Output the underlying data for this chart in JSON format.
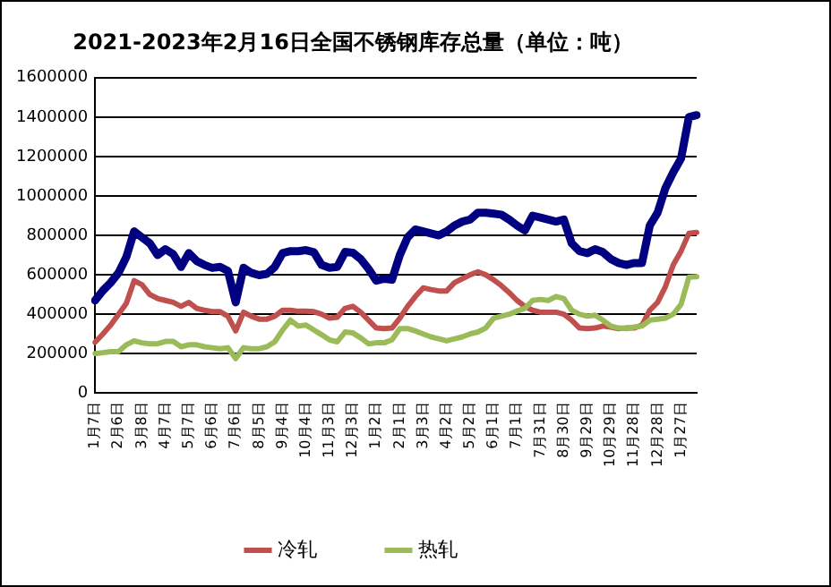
{
  "chart_data": {
    "type": "line",
    "title": "2021-2023年2月16日全国不锈钢库存总量（单位：吨）",
    "categories": [
      "1月7日",
      null,
      null,
      "2月6日",
      null,
      null,
      "3月8日",
      null,
      null,
      "4月7日",
      null,
      null,
      "5月7日",
      null,
      null,
      "6月6日",
      null,
      null,
      "7月6日",
      null,
      null,
      "8月5日",
      null,
      null,
      "9月4日",
      null,
      null,
      "10月4日",
      null,
      null,
      "11月3日",
      null,
      null,
      "12月3日",
      null,
      null,
      "1月2日",
      null,
      null,
      "2月1日",
      null,
      null,
      "3月3日",
      null,
      null,
      "4月2日",
      null,
      null,
      "5月2日",
      null,
      null,
      "6月1日",
      null,
      null,
      "7月1日",
      null,
      null,
      "7月31日",
      null,
      null,
      "8月30日",
      null,
      null,
      "9月29日",
      null,
      null,
      "10月29日",
      null,
      null,
      "11月28日",
      null,
      null,
      "12月28日",
      null,
      null,
      "1月27日",
      null,
      null
    ],
    "series": [
      {
        "color": "#000080",
        "values": [
          470000,
          520000,
          560000,
          610000,
          690000,
          820000,
          790000,
          760000,
          700000,
          730000,
          705000,
          640000,
          710000,
          670000,
          650000,
          635000,
          640000,
          620000,
          460000,
          636000,
          610000,
          598000,
          605000,
          640000,
          710000,
          720000,
          720000,
          725000,
          715000,
          650000,
          636000,
          640000,
          716000,
          712000,
          680000,
          630000,
          570000,
          580000,
          575000,
          700000,
          790000,
          830000,
          820000,
          810000,
          800000,
          820000,
          850000,
          870000,
          880000,
          915000,
          915000,
          910000,
          905000,
          880000,
          850000,
          825000,
          900000,
          890000,
          880000,
          870000,
          880000,
          760000,
          720000,
          710000,
          730000,
          715000,
          680000,
          660000,
          650000,
          660000,
          660000,
          850000,
          915000,
          1040000,
          1120000,
          1190000,
          1400000,
          1410000
        ]
      },
      {
        "name": "冷轧",
        "color": "#c0504d",
        "values": [
          258000,
          300000,
          345000,
          400000,
          455000,
          570000,
          550000,
          500000,
          480000,
          470000,
          460000,
          440000,
          460000,
          430000,
          420000,
          413000,
          413000,
          390000,
          315000,
          410000,
          390000,
          375000,
          375000,
          390000,
          420000,
          420000,
          415000,
          415000,
          413000,
          400000,
          380000,
          385000,
          430000,
          440000,
          410000,
          370000,
          330000,
          327000,
          330000,
          380000,
          440000,
          490000,
          534000,
          525000,
          518000,
          518000,
          560000,
          580000,
          600000,
          615000,
          600000,
          575000,
          545000,
          510000,
          470000,
          440000,
          420000,
          410000,
          410000,
          410000,
          400000,
          370000,
          330000,
          327000,
          330000,
          340000,
          335000,
          327000,
          330000,
          330000,
          345000,
          420000,
          460000,
          540000,
          650000,
          720000,
          810000,
          815000
        ]
      },
      {
        "name": "热轧",
        "color": "#9bbb59",
        "values": [
          200000,
          205000,
          210000,
          210000,
          245000,
          265000,
          255000,
          250000,
          250000,
          262000,
          262000,
          235000,
          245000,
          245000,
          235000,
          230000,
          225000,
          230000,
          175000,
          230000,
          225000,
          225000,
          235000,
          260000,
          320000,
          370000,
          340000,
          345000,
          320000,
          296000,
          270000,
          260000,
          310000,
          305000,
          280000,
          250000,
          255000,
          255000,
          270000,
          327000,
          327000,
          315000,
          300000,
          285000,
          275000,
          265000,
          275000,
          285000,
          300000,
          310000,
          330000,
          380000,
          390000,
          400000,
          416000,
          430000,
          470000,
          475000,
          470000,
          490000,
          480000,
          420000,
          400000,
          390000,
          395000,
          370000,
          340000,
          330000,
          327000,
          335000,
          340000,
          370000,
          375000,
          380000,
          400000,
          450000,
          588000,
          590000
        ]
      }
    ],
    "ylim": [
      0,
      1600000
    ],
    "yticks": [
      0,
      200000,
      400000,
      600000,
      800000,
      1000000,
      1200000,
      1400000,
      1600000
    ],
    "grid": "y",
    "legend": "bottom",
    "marker": "none",
    "line_style": "solid"
  }
}
